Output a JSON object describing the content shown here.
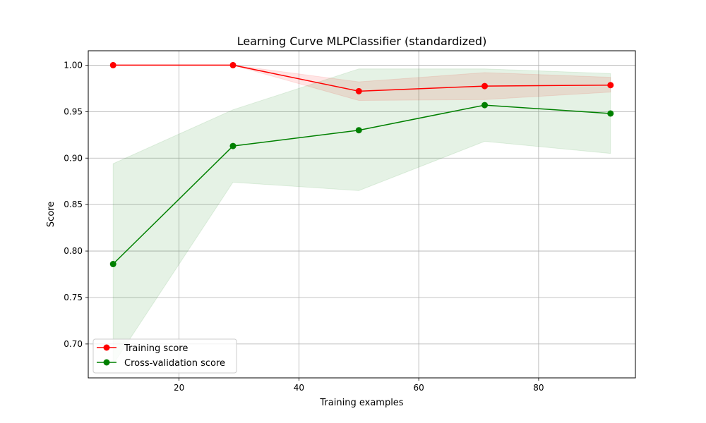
{
  "chart_data": {
    "type": "line",
    "title": "Learning Curve MLPClassifier (standardized)",
    "xlabel": "Training examples",
    "ylabel": "Score",
    "xlim": [
      4.85,
      96.15
    ],
    "ylim": [
      0.6635,
      1.0155
    ],
    "xticks": [
      20,
      40,
      60,
      80
    ],
    "xtick_labels": [
      "20",
      "40",
      "60",
      "80"
    ],
    "yticks": [
      0.7,
      0.75,
      0.8,
      0.85,
      0.9,
      0.95,
      1.0
    ],
    "ytick_labels": [
      "0.70",
      "0.75",
      "0.80",
      "0.85",
      "0.90",
      "0.95",
      "1.00"
    ],
    "grid": true,
    "legend_position": "lower-left",
    "x": [
      9,
      29,
      50,
      71,
      92
    ],
    "series": [
      {
        "name": "Training score",
        "color": "#ff0000",
        "values": [
          1.0,
          1.0,
          0.972,
          0.9775,
          0.9785
        ],
        "band_upper": [
          1.0,
          1.0,
          0.982,
          0.992,
          0.987
        ],
        "band_lower": [
          1.0,
          1.0,
          0.962,
          0.963,
          0.971
        ]
      },
      {
        "name": "Cross-validation score",
        "color": "#008000",
        "values": [
          0.786,
          0.913,
          0.93,
          0.957,
          0.948
        ],
        "band_upper": [
          0.894,
          0.952,
          0.996,
          0.996,
          0.991
        ],
        "band_lower": [
          0.678,
          0.874,
          0.865,
          0.918,
          0.905
        ]
      }
    ]
  }
}
